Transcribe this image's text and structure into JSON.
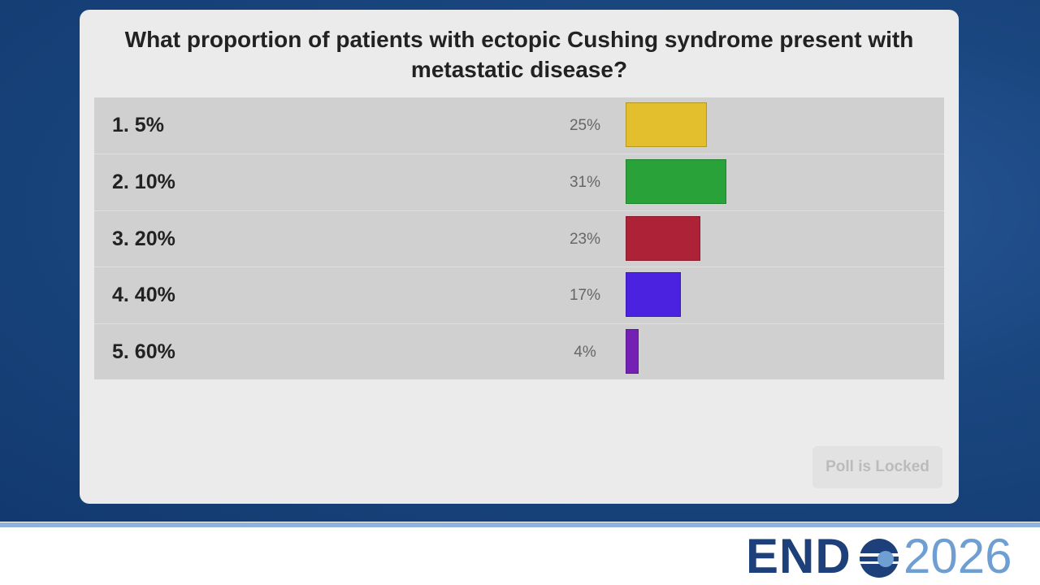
{
  "chart_data": {
    "type": "bar",
    "title": "What proportion of patients with ectopic Cushing syndrome present with metastatic disease?",
    "categories": [
      "1. 5%",
      "2. 10%",
      "3. 20%",
      "4. 40%",
      "5. 60%"
    ],
    "values": [
      25,
      31,
      23,
      17,
      4
    ],
    "value_labels": [
      "25%",
      "31%",
      "23%",
      "17%",
      "4%"
    ],
    "colors": [
      "#e3bf2e",
      "#2aa23a",
      "#ad2237",
      "#4a22e0",
      "#7420b4"
    ]
  },
  "button": "Poll is Locked",
  "logo": {
    "prefix": "END",
    "suffix": "2026"
  }
}
